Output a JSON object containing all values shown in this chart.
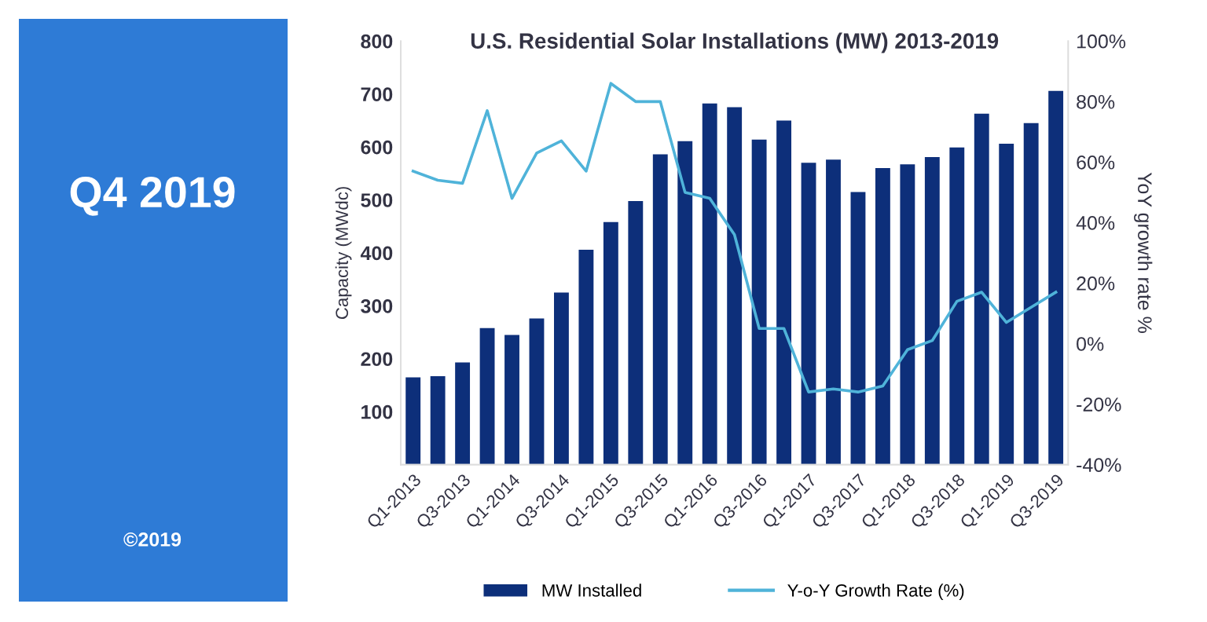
{
  "chart_data": {
    "type": "bar",
    "title": "U.S. Residential Solar Installations (MW) 2013-2019",
    "categories": [
      "Q1-2013",
      null,
      "Q3-2013",
      null,
      "Q1-2014",
      null,
      "Q3-2014",
      null,
      "Q1-2015",
      null,
      "Q3-2015",
      null,
      "Q1-2016",
      null,
      "Q3-2016",
      null,
      "Q1-2017",
      null,
      "Q3-2017",
      null,
      "Q1-2018",
      null,
      "Q3-2018",
      null,
      "Q1-2019",
      null,
      "Q3-2019"
    ],
    "series": [
      {
        "name": "MW Installed",
        "color": "#0d2f7a",
        "values": [
          165,
          167,
          193,
          258,
          245,
          276,
          325,
          406,
          458,
          498,
          586,
          611,
          682,
          675,
          614,
          650,
          570,
          576,
          515,
          560,
          567,
          581,
          599,
          663,
          606,
          645,
          706
        ]
      },
      {
        "name": "Y-o-Y Growth Rate (%)",
        "type": "line",
        "axis": "y2",
        "color": "#4fb3d9",
        "values": [
          57,
          54,
          53,
          77,
          48,
          63,
          67,
          57,
          86,
          80,
          80,
          50,
          48,
          36,
          5,
          5,
          -16,
          -15,
          -16,
          -14,
          -2,
          1,
          14,
          17,
          7,
          12,
          17
        ]
      }
    ],
    "ylabel": "Capacity (MWdc)",
    "y2label": "YoY growth rate %",
    "ylim": [
      0,
      800
    ],
    "yticks": [
      100,
      200,
      300,
      400,
      500,
      600,
      700,
      800
    ],
    "y2lim": [
      -40,
      100
    ],
    "y2ticks": [
      {
        "value": -40,
        "label": "-40%"
      },
      {
        "value": -20,
        "label": "-20%"
      },
      {
        "value": 0,
        "label": "0%"
      },
      {
        "value": 20,
        "label": "20%"
      },
      {
        "value": 40,
        "label": "40%"
      },
      {
        "value": 60,
        "label": "60%"
      },
      {
        "value": 80,
        "label": "80%"
      },
      {
        "value": 100,
        "label": "100%"
      }
    ],
    "legend": "bottom",
    "grid": false,
    "marker": "none",
    "line_style": "solid",
    "annotations": [
      "Q4 2019",
      "©2019"
    ]
  }
}
